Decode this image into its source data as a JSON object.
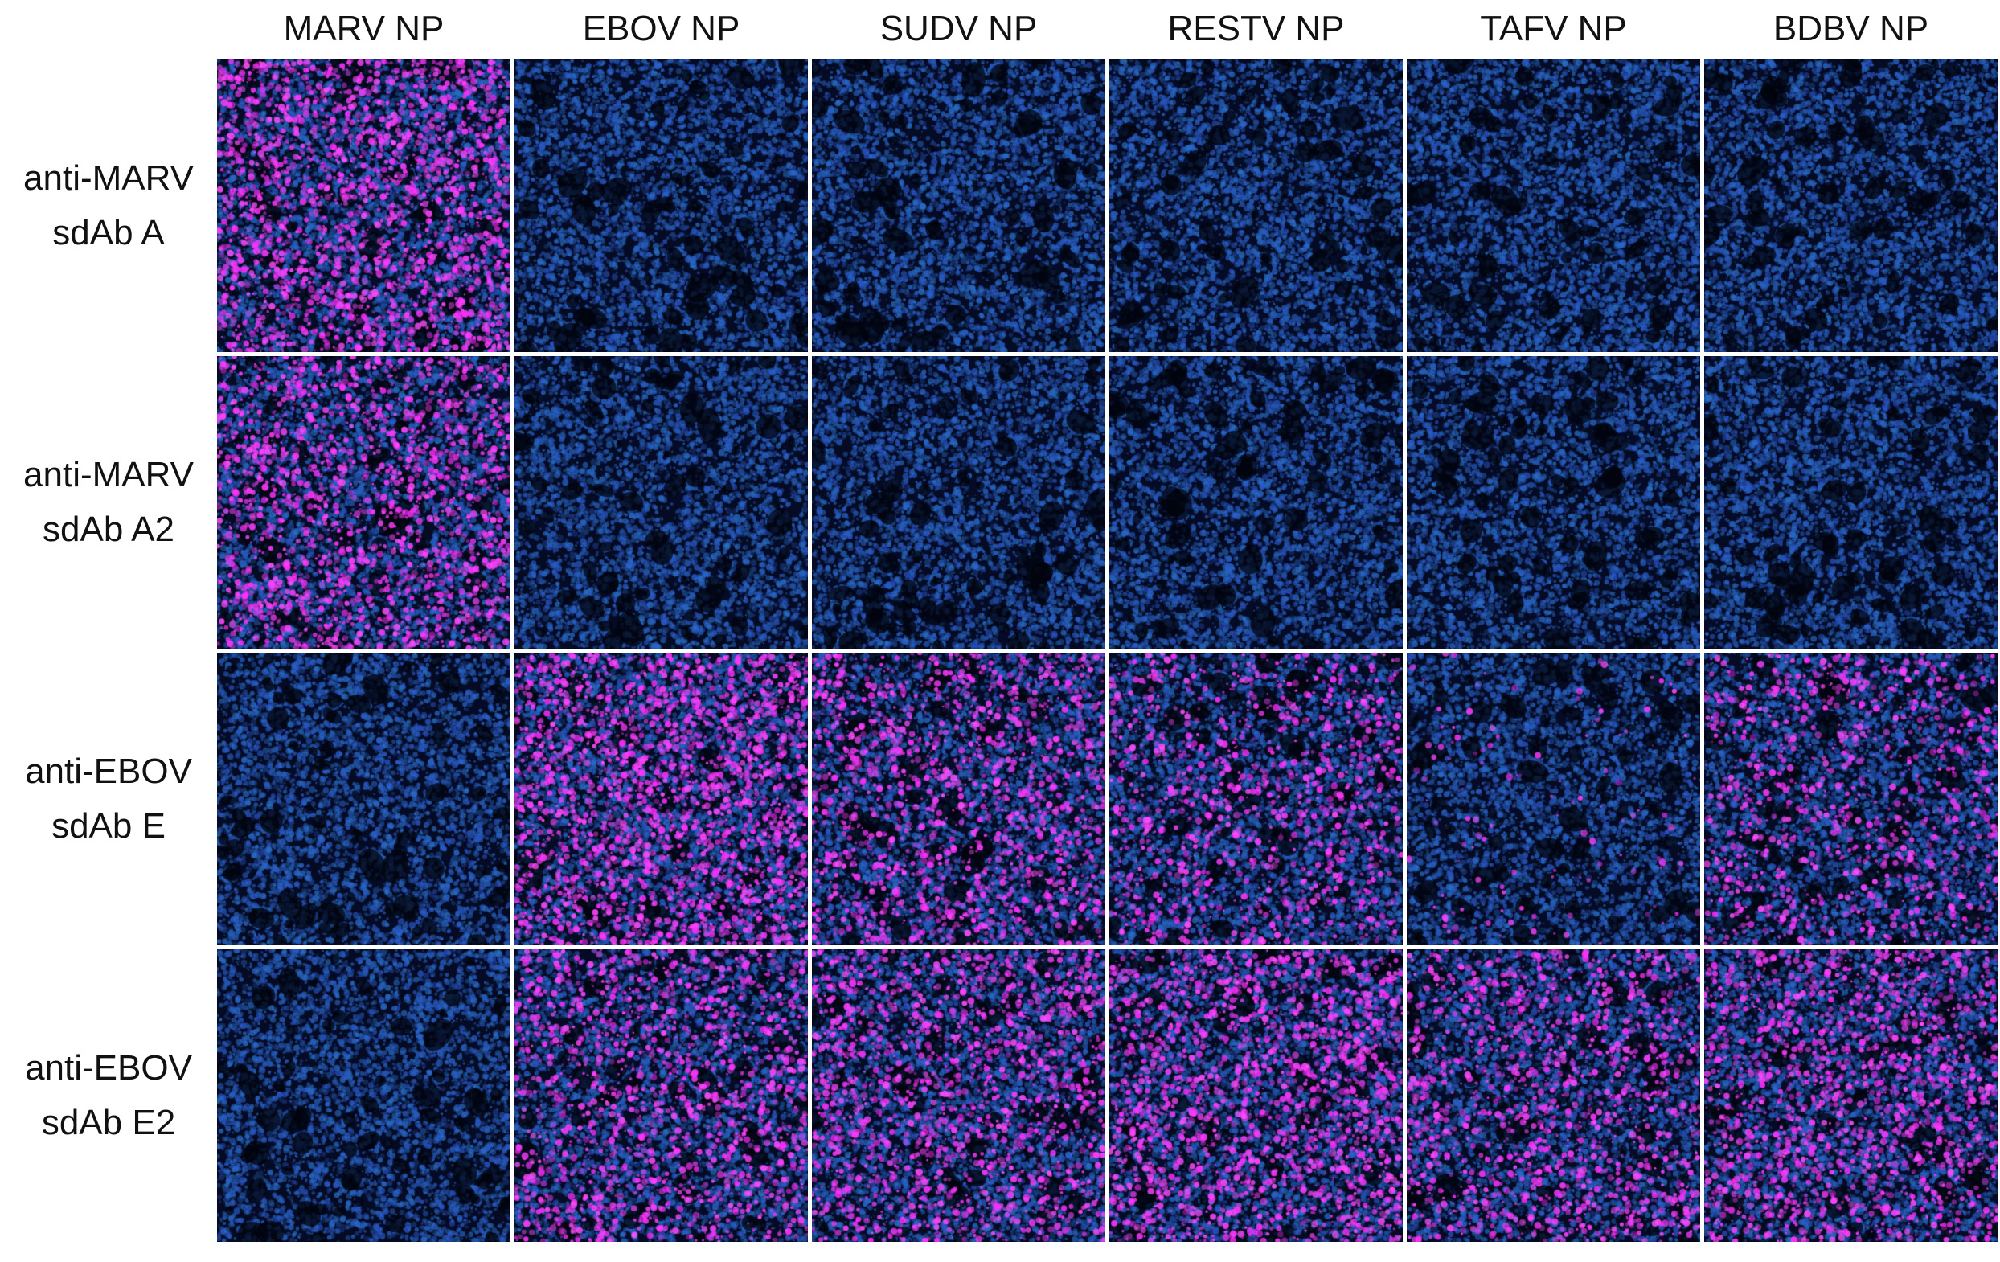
{
  "figure": {
    "columns": [
      "MARV NP",
      "EBOV NP",
      "SUDV NP",
      "RESTV NP",
      "TAFV NP",
      "BDBV NP"
    ],
    "rows": [
      {
        "label_line1": "anti-MARV",
        "label_line2": "sdAb A"
      },
      {
        "label_line1": "anti-MARV",
        "label_line2": "sdAb A2"
      },
      {
        "label_line1": "anti-EBOV",
        "label_line2": "sdAb E"
      },
      {
        "label_line1": "anti-EBOV",
        "label_line2": "sdAb E2"
      }
    ],
    "magenta_signal_levels": [
      [
        0.85,
        0.0,
        0.0,
        0.0,
        0.0,
        0.0
      ],
      [
        0.7,
        0.0,
        0.0,
        0.0,
        0.0,
        0.0
      ],
      [
        0.0,
        0.9,
        0.6,
        0.45,
        0.05,
        0.4
      ],
      [
        0.0,
        0.6,
        0.65,
        0.75,
        0.55,
        0.65
      ]
    ],
    "colors": {
      "background": "#ffffff",
      "panel_dark": "#050b24",
      "nuclear_stain": "#2a55c8",
      "signal": "#ff2bff"
    }
  }
}
